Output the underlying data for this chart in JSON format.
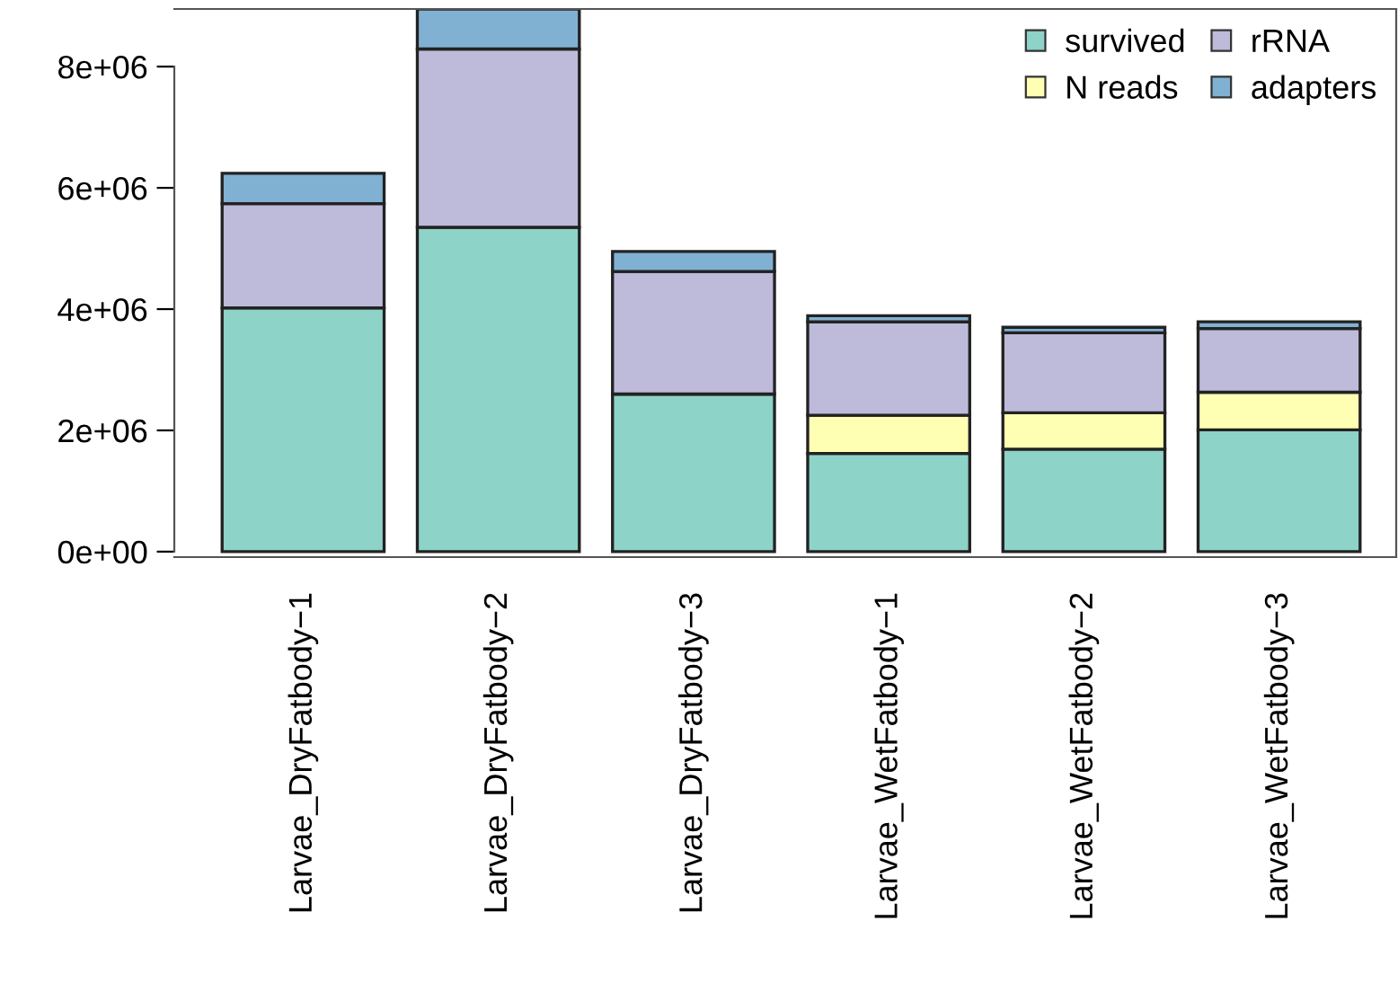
{
  "chart_data": {
    "type": "bar",
    "stacked": true,
    "categories": [
      "Larvae_DryFatbody−1",
      "Larvae_DryFatbody−2",
      "Larvae_DryFatbody−3",
      "Larvae_WetFatbody−1",
      "Larvae_WetFatbody−2",
      "Larvae_WetFatbody−3"
    ],
    "series": [
      {
        "name": "survived",
        "color": "#8dd3c7",
        "values": [
          4020000,
          5350000,
          2600000,
          1620000,
          1690000,
          2010000
        ]
      },
      {
        "name": "N reads",
        "color": "#ffffb3",
        "values": [
          0,
          0,
          0,
          630000,
          600000,
          620000
        ]
      },
      {
        "name": "rRNA",
        "color": "#bebada",
        "values": [
          1720000,
          2940000,
          2020000,
          1540000,
          1320000,
          1050000
        ]
      },
      {
        "name": "adapters",
        "color": "#80b1d3",
        "values": [
          500000,
          660000,
          330000,
          100000,
          90000,
          110000
        ]
      }
    ],
    "ylim": [
      -90000,
      8950000
    ],
    "yticks": [
      {
        "value": 0,
        "label": "0e+00"
      },
      {
        "value": 2000000,
        "label": "2e+06"
      },
      {
        "value": 4000000,
        "label": "4e+06"
      },
      {
        "value": 6000000,
        "label": "6e+06"
      },
      {
        "value": 8000000,
        "label": "8e+06"
      }
    ],
    "grid": false,
    "legend": "top right"
  }
}
